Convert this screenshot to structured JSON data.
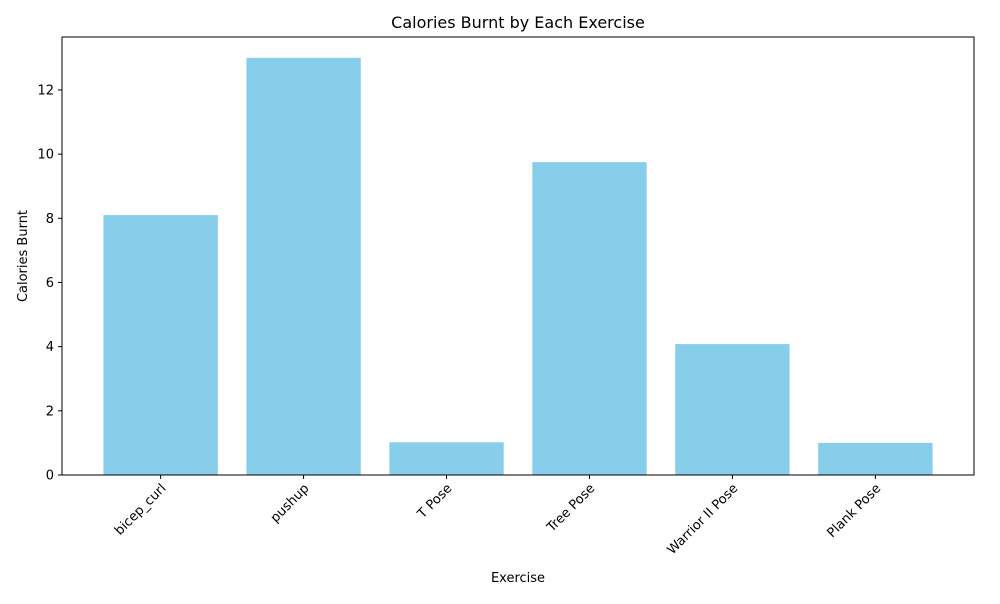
{
  "chart_data": {
    "type": "bar",
    "title": "Calories Burnt by Each Exercise",
    "xlabel": "Exercise",
    "ylabel": "Calories Burnt",
    "categories": [
      "bicep_curl",
      "pushup",
      "T Pose",
      "Tree Pose",
      "Warrior II Pose",
      "Plank Pose"
    ],
    "values": [
      8.1,
      13.0,
      1.02,
      9.75,
      4.08,
      1.0
    ],
    "ylim": [
      0,
      13.65
    ],
    "yticks": [
      0,
      2,
      4,
      6,
      8,
      10,
      12
    ],
    "grid": false,
    "legend": "none",
    "bar_color": "#87CEEB"
  }
}
